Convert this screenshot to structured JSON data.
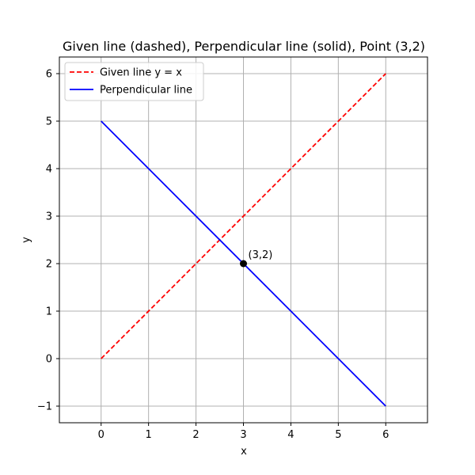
{
  "chart_data": {
    "type": "line",
    "title": "Given line (dashed), Perpendicular line (solid), Point (3,2)",
    "xlabel": "x",
    "ylabel": "y",
    "xlim": [
      -0.88,
      6.88
    ],
    "ylim": [
      -1.35,
      6.35
    ],
    "xticks": [
      0,
      1,
      2,
      3,
      4,
      5,
      6
    ],
    "yticks": [
      -1,
      0,
      1,
      2,
      3,
      4,
      5,
      6
    ],
    "xtick_labels": [
      "0",
      "1",
      "2",
      "3",
      "4",
      "5",
      "6"
    ],
    "ytick_labels": [
      "−1",
      "0",
      "1",
      "2",
      "3",
      "4",
      "5",
      "6"
    ],
    "grid": true,
    "legend_position": "top-left",
    "series": [
      {
        "name": "Given line y = x",
        "style": "dashed",
        "color": "#ff0000",
        "x": [
          0,
          6
        ],
        "y": [
          0,
          6
        ]
      },
      {
        "name": "Perpendicular line",
        "style": "solid",
        "color": "#0000ff",
        "x": [
          0,
          6
        ],
        "y": [
          5,
          -1
        ]
      }
    ],
    "point": {
      "x": 3,
      "y": 2,
      "label": "(3,2)",
      "color": "#000000"
    }
  }
}
